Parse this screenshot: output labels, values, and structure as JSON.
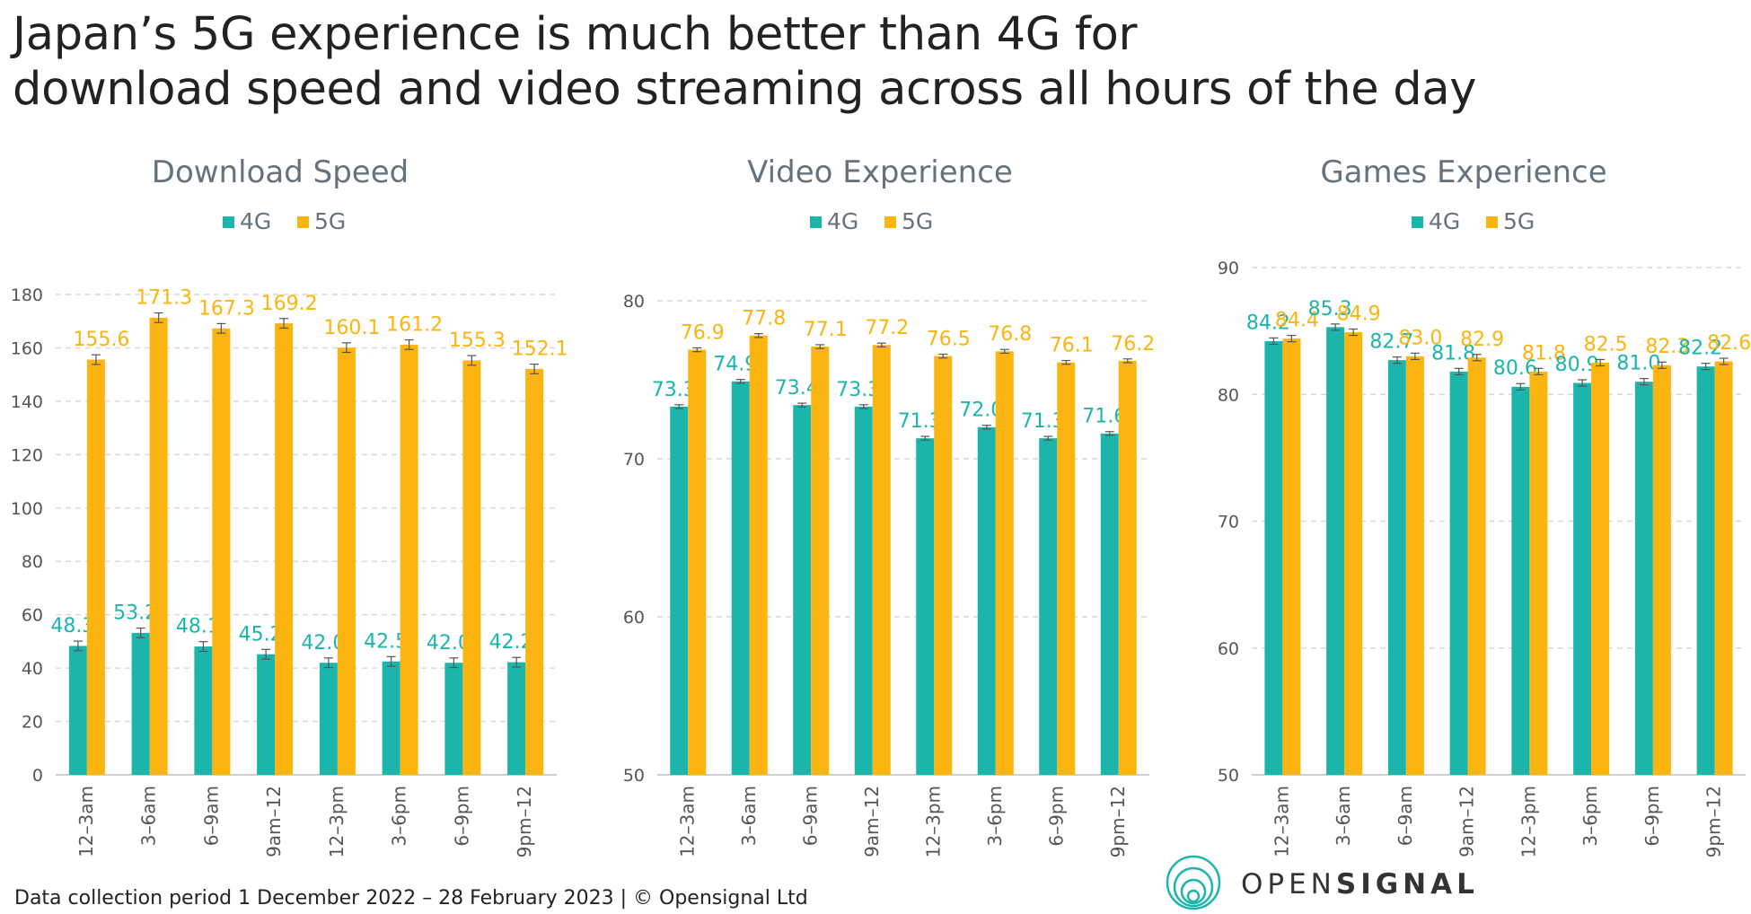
{
  "title": {
    "line1": "Japan’s 5G experience is much better than 4G for",
    "line2": "download speed and video streaming across all hours of the day"
  },
  "footer": {
    "note": "Data collection period 1 December 2022 – 28 February 2023  |  © Opensignal Ltd"
  },
  "logo": {
    "part1": "OPEN",
    "part2": "SIGNAL"
  },
  "colors": {
    "4G": "#1cb5ac",
    "5G": "#fbb410",
    "grid": "#d9d9d9",
    "axisText": "#555555",
    "subtitle": "#67727a"
  },
  "chart_data": [
    {
      "type": "bar",
      "title": "Download Speed",
      "categories": [
        "12–3am",
        "3–6am",
        "6–9am",
        "9am–12",
        "12–3pm",
        "3–6pm",
        "6–9pm",
        "9pm–12"
      ],
      "series": [
        {
          "name": "4G",
          "values": [
            48.3,
            53.2,
            48.1,
            45.2,
            42.0,
            42.5,
            42.0,
            42.2
          ]
        },
        {
          "name": "5G",
          "values": [
            155.6,
            171.3,
            167.3,
            169.2,
            160.1,
            161.2,
            155.3,
            152.1
          ]
        }
      ],
      "ylim": [
        0,
        180
      ],
      "yticks": [
        0,
        20,
        40,
        60,
        80,
        100,
        120,
        140,
        160,
        180
      ],
      "grid": true,
      "legend": "top-center",
      "error_bars": true
    },
    {
      "type": "bar",
      "title": "Video Experience",
      "categories": [
        "12–3am",
        "3–6am",
        "6–9am",
        "9am–12",
        "12–3pm",
        "3–6pm",
        "6–9pm",
        "9pm–12"
      ],
      "series": [
        {
          "name": "4G",
          "values": [
            73.3,
            74.9,
            73.4,
            73.3,
            71.3,
            72.0,
            71.3,
            71.6
          ]
        },
        {
          "name": "5G",
          "values": [
            76.9,
            77.8,
            77.1,
            77.2,
            76.5,
            76.8,
            76.1,
            76.2
          ]
        }
      ],
      "ylim": [
        50,
        80
      ],
      "yticks": [
        50,
        60,
        70,
        80
      ],
      "grid": true,
      "legend": "top-center",
      "error_bars": true
    },
    {
      "type": "bar",
      "title": "Games Experience",
      "categories": [
        "12–3am",
        "3–6am",
        "6–9am",
        "9am–12",
        "12–3pm",
        "3–6pm",
        "6–9pm",
        "9pm–12"
      ],
      "series": [
        {
          "name": "4G",
          "values": [
            84.2,
            85.3,
            82.7,
            81.8,
            80.6,
            80.9,
            81.0,
            82.2
          ]
        },
        {
          "name": "5G",
          "values": [
            84.4,
            84.9,
            83.0,
            82.9,
            81.8,
            82.5,
            82.3,
            82.6
          ]
        }
      ],
      "ylim": [
        50,
        90
      ],
      "yticks": [
        50,
        60,
        70,
        80,
        90
      ],
      "grid": true,
      "legend": "top-center",
      "error_bars": true
    }
  ]
}
